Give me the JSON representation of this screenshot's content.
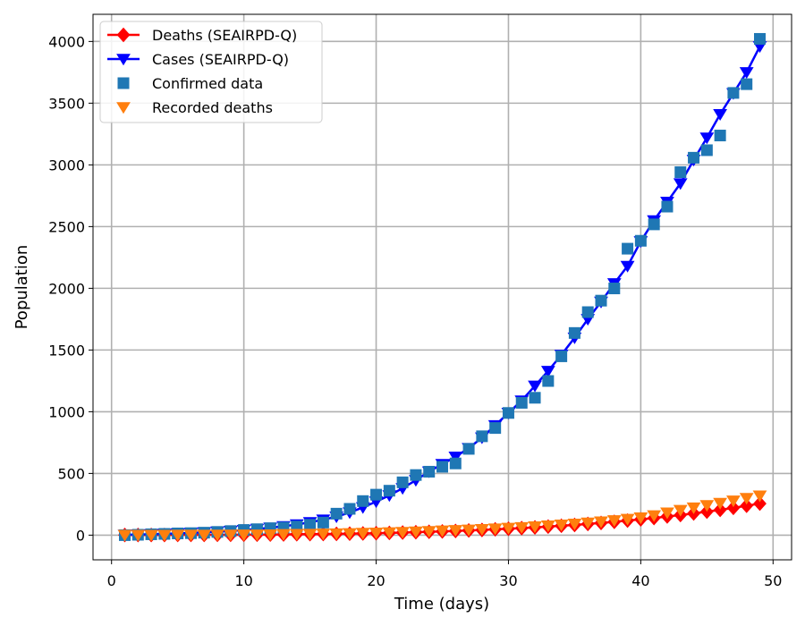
{
  "chart_data": {
    "type": "line",
    "xlabel": "Time (days)",
    "ylabel": "Population",
    "xlim": [
      -1.4,
      51.4
    ],
    "ylim": [
      -200,
      4220
    ],
    "xticks": [
      0,
      10,
      20,
      30,
      40,
      50
    ],
    "yticks": [
      0,
      500,
      1000,
      1500,
      2000,
      2500,
      3000,
      3500,
      4000
    ],
    "grid": true,
    "legend_position": "top-left",
    "x": [
      1,
      2,
      3,
      4,
      5,
      6,
      7,
      8,
      9,
      10,
      11,
      12,
      13,
      14,
      15,
      16,
      17,
      18,
      19,
      20,
      21,
      22,
      23,
      24,
      25,
      26,
      27,
      28,
      29,
      30,
      31,
      32,
      33,
      34,
      35,
      36,
      37,
      38,
      39,
      40,
      41,
      42,
      43,
      44,
      45,
      46,
      47,
      48,
      49
    ],
    "series": [
      {
        "name": "Deaths (SEAIRPD-Q)",
        "style": "line-diamond",
        "color": "#ff0000",
        "values": [
          1,
          1,
          1,
          1,
          2,
          2,
          2,
          3,
          3,
          4,
          4,
          5,
          6,
          7,
          8,
          9,
          10,
          12,
          14,
          16,
          18,
          21,
          24,
          27,
          30,
          34,
          38,
          42,
          47,
          52,
          57,
          63,
          69,
          76,
          83,
          91,
          99,
          108,
          118,
          128,
          139,
          151,
          163,
          176,
          190,
          205,
          221,
          238,
          256
        ]
      },
      {
        "name": "Cases (SEAIRPD-Q)",
        "style": "line-triangle-down",
        "color": "#0000ff",
        "values": [
          3,
          5,
          7,
          10,
          14,
          18,
          22,
          28,
          34,
          41,
          50,
          60,
          72,
          86,
          104,
          125,
          150,
          183,
          225,
          272,
          322,
          380,
          445,
          515,
          575,
          635,
          705,
          790,
          890,
          990,
          1090,
          1210,
          1330,
          1460,
          1600,
          1750,
          1890,
          2040,
          2180,
          2380,
          2550,
          2700,
          2850,
          3040,
          3220,
          3410,
          3580,
          3750,
          3960
        ]
      },
      {
        "name": "Confirmed data",
        "style": "marker-square",
        "color": "#1f77b4",
        "values": [
          0,
          3,
          7,
          10,
          14,
          16,
          20,
          26,
          33,
          42,
          48,
          56,
          61,
          70,
          84,
          102,
          174,
          213,
          276,
          328,
          360,
          428,
          487,
          514,
          554,
          581,
          699,
          801,
          868,
          990,
          1072,
          1113,
          1249,
          1449,
          1638,
          1807,
          1900,
          1999,
          2321,
          2385,
          2518,
          2662,
          2941,
          3058,
          3119,
          3238,
          3583,
          3654,
          4021
        ]
      },
      {
        "name": "Recorded deaths",
        "style": "marker-triangle-down",
        "color": "#ff7f0e",
        "values": [
          1,
          1,
          1,
          1,
          2,
          2,
          2,
          3,
          3,
          4,
          4,
          5,
          7,
          8,
          9,
          11,
          13,
          15,
          17,
          19,
          22,
          25,
          28,
          32,
          36,
          40,
          44,
          48,
          53,
          58,
          64,
          70,
          77,
          84,
          92,
          101,
          110,
          120,
          131,
          142,
          160,
          182,
          203,
          223,
          242,
          260,
          279,
          300,
          320
        ]
      }
    ]
  }
}
